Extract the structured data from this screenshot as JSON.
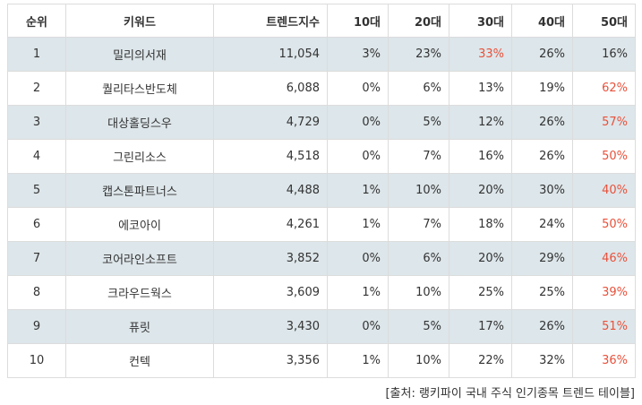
{
  "table": {
    "headers": [
      "순위",
      "키워드",
      "트렌드지수",
      "10대",
      "20대",
      "30대",
      "40대",
      "50대"
    ],
    "rows": [
      {
        "rank": "1",
        "keyword": "밀리의서재",
        "index": "11,054",
        "a10": "3%",
        "a20": "23%",
        "a30": "33%",
        "a40": "26%",
        "a50": "16%",
        "highlight": "a30"
      },
      {
        "rank": "2",
        "keyword": "퀄리타스반도체",
        "index": "6,088",
        "a10": "0%",
        "a20": "6%",
        "a30": "13%",
        "a40": "19%",
        "a50": "62%",
        "highlight": "a50"
      },
      {
        "rank": "3",
        "keyword": "대상홀딩스우",
        "index": "4,729",
        "a10": "0%",
        "a20": "5%",
        "a30": "12%",
        "a40": "26%",
        "a50": "57%",
        "highlight": "a50"
      },
      {
        "rank": "4",
        "keyword": "그린리소스",
        "index": "4,518",
        "a10": "0%",
        "a20": "7%",
        "a30": "16%",
        "a40": "26%",
        "a50": "50%",
        "highlight": "a50"
      },
      {
        "rank": "5",
        "keyword": "캡스톤파트너스",
        "index": "4,488",
        "a10": "1%",
        "a20": "10%",
        "a30": "20%",
        "a40": "30%",
        "a50": "40%",
        "highlight": "a50"
      },
      {
        "rank": "6",
        "keyword": "에코아이",
        "index": "4,261",
        "a10": "1%",
        "a20": "7%",
        "a30": "18%",
        "a40": "24%",
        "a50": "50%",
        "highlight": "a50"
      },
      {
        "rank": "7",
        "keyword": "코어라인소프트",
        "index": "3,852",
        "a10": "0%",
        "a20": "6%",
        "a30": "20%",
        "a40": "29%",
        "a50": "46%",
        "highlight": "a50"
      },
      {
        "rank": "8",
        "keyword": "크라우드웍스",
        "index": "3,609",
        "a10": "1%",
        "a20": "10%",
        "a30": "25%",
        "a40": "25%",
        "a50": "39%",
        "highlight": "a50"
      },
      {
        "rank": "9",
        "keyword": "퓨릿",
        "index": "3,430",
        "a10": "0%",
        "a20": "5%",
        "a30": "17%",
        "a40": "26%",
        "a50": "51%",
        "highlight": "a50"
      },
      {
        "rank": "10",
        "keyword": "컨텍",
        "index": "3,356",
        "a10": "1%",
        "a20": "10%",
        "a30": "22%",
        "a40": "32%",
        "a50": "36%",
        "highlight": "a50"
      }
    ]
  },
  "source": "[출처: 랭키파이 국내 주식 인기종목 트렌드 테이블]",
  "colors": {
    "highlight": "#e8513b",
    "shade": "#dde6ea",
    "border": "#dcdcdc"
  }
}
